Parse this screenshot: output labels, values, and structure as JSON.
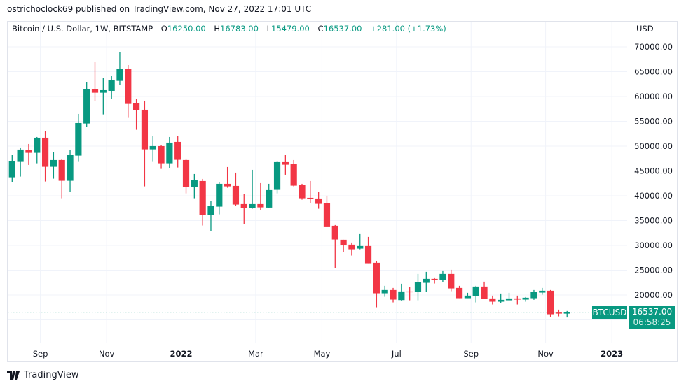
{
  "publish_line": "ostrichoclock69 published on TradingView.com, Nov 27, 2022 17:01 UTC",
  "legend": {
    "symbol": "Bitcoin / U.S. Dollar, 1W, BITSTAMP",
    "o_label": "O",
    "o": "16250.00",
    "h_label": "H",
    "h": "16783.00",
    "l_label": "L",
    "l": "15479.00",
    "c_label": "C",
    "c": "16537.00",
    "change": "+281.00 (+1.73%)"
  },
  "currency": "USD",
  "last_price": {
    "symbol_tag": "BTCUSD",
    "price": "16537.00",
    "countdown": "06:58:25",
    "value": 16537
  },
  "footer": {
    "brand": "TradingView"
  },
  "colors": {
    "up": "#089981",
    "down": "#f23645",
    "grid": "#f0f3fa",
    "text": "#131722"
  },
  "chart_data": {
    "type": "candlestick",
    "title": "Bitcoin / U.S. Dollar, 1W, BITSTAMP",
    "ylabel": "USD",
    "ylim": [
      10000,
      72000
    ],
    "y_ticks": [
      20000,
      25000,
      30000,
      35000,
      40000,
      45000,
      50000,
      55000,
      60000,
      65000,
      70000
    ],
    "y_tick_labels": [
      "20000.00",
      "25000.00",
      "30000.00",
      "35000.00",
      "40000.00",
      "45000.00",
      "50000.00",
      "55000.00",
      "60000.00",
      "65000.00",
      "70000.00"
    ],
    "x_tick_labels": [
      {
        "label": "Sep",
        "week": 4,
        "bold": false
      },
      {
        "label": "Nov",
        "week": 12,
        "bold": false
      },
      {
        "label": "2022",
        "week": 21,
        "bold": true
      },
      {
        "label": "Mar",
        "week": 30,
        "bold": false
      },
      {
        "label": "May",
        "week": 38,
        "bold": false
      },
      {
        "label": "Jul",
        "week": 47,
        "bold": false
      },
      {
        "label": "Sep",
        "week": 56,
        "bold": false
      },
      {
        "label": "Nov",
        "week": 65,
        "bold": false
      },
      {
        "label": "2023",
        "week": 73,
        "bold": true
      }
    ],
    "ohlc": [
      [
        43719,
        48178,
        42687,
        46911
      ],
      [
        46817,
        49726,
        43860,
        49304
      ],
      [
        49164,
        50430,
        46207,
        48647
      ],
      [
        48647,
        51838,
        46536,
        51697
      ],
      [
        51697,
        52965,
        42875,
        45831
      ],
      [
        45831,
        48741,
        43438,
        47192
      ],
      [
        47192,
        47333,
        39496,
        43016
      ],
      [
        43016,
        49164,
        40763,
        48178
      ],
      [
        48084,
        56485,
        46817,
        54654
      ],
      [
        54560,
        62820,
        53856,
        61412
      ],
      [
        61412,
        66903,
        59066,
        60755
      ],
      [
        60755,
        63665,
        56391,
        61271
      ],
      [
        61131,
        64228,
        59488,
        63242
      ],
      [
        63148,
        68874,
        62304,
        65495
      ],
      [
        65495,
        66340,
        55687,
        58502
      ],
      [
        58596,
        59441,
        53293,
        57236
      ],
      [
        57329,
        59160,
        41889,
        49351
      ],
      [
        49351,
        51979,
        46817,
        50008
      ],
      [
        50008,
        50149,
        45409,
        46536
      ],
      [
        46536,
        51838,
        45550,
        50712
      ],
      [
        50853,
        51979,
        45690,
        47239
      ],
      [
        47192,
        47474,
        40481,
        41749
      ],
      [
        41749,
        44376,
        39496,
        43109
      ],
      [
        42967,
        43390,
        34004,
        36115
      ],
      [
        36115,
        38884,
        32877,
        37899
      ],
      [
        37805,
        42686,
        36256,
        42404
      ],
      [
        42404,
        45783,
        41606,
        41888
      ],
      [
        41982,
        44657,
        37946,
        38227
      ],
      [
        38321,
        40292,
        34285,
        37523
      ],
      [
        37476,
        45220,
        37383,
        38321
      ],
      [
        38321,
        42545,
        37101,
        37664
      ],
      [
        37617,
        42404,
        37523,
        41137
      ],
      [
        41184,
        46909,
        40480,
        46769
      ],
      [
        46769,
        48177,
        44234,
        46252
      ],
      [
        46346,
        47191,
        41888,
        42029
      ],
      [
        42123,
        42404,
        39213,
        39494
      ],
      [
        39588,
        42967,
        38509,
        39354
      ],
      [
        39447,
        40715,
        37383,
        38368
      ],
      [
        38462,
        40011,
        33722,
        33816
      ],
      [
        33957,
        34097,
        25415,
        31188
      ],
      [
        31141,
        31141,
        28653,
        30062
      ],
      [
        30155,
        30578,
        27949,
        29216
      ],
      [
        29357,
        32267,
        29216,
        29874
      ],
      [
        29874,
        31704,
        26401,
        26401
      ],
      [
        26495,
        26777,
        17531,
        20347
      ],
      [
        20347,
        21849,
        19642,
        21004
      ],
      [
        21002,
        21425,
        18515,
        19078
      ],
      [
        18984,
        22269,
        18891,
        20721
      ],
      [
        20721,
        21566,
        18937,
        20580
      ],
      [
        20627,
        24241,
        18937,
        22551
      ],
      [
        22457,
        24663,
        20627,
        23255
      ],
      [
        23255,
        23537,
        22316,
        23020
      ],
      [
        23020,
        24944,
        22598,
        24241
      ],
      [
        24241,
        25085,
        20768,
        21331
      ],
      [
        21425,
        21847,
        19360,
        19360
      ],
      [
        19360,
        20439,
        19360,
        19876
      ],
      [
        19782,
        21847,
        18515,
        21706
      ],
      [
        21706,
        22692,
        19219,
        19219
      ],
      [
        19313,
        19876,
        18093,
        18656
      ],
      [
        18656,
        20298,
        18374,
        19031
      ],
      [
        18937,
        20439,
        18937,
        19313
      ],
      [
        19313,
        19876,
        18093,
        19078
      ],
      [
        19078,
        19595,
        18656,
        19454
      ],
      [
        19360,
        21002,
        19031,
        20580
      ],
      [
        20486,
        21425,
        20064,
        20861
      ],
      [
        20861,
        21002,
        15558,
        16121
      ],
      [
        16460,
        17060,
        15699,
        16256
      ],
      [
        16250,
        16783,
        15479,
        16537
      ]
    ]
  }
}
